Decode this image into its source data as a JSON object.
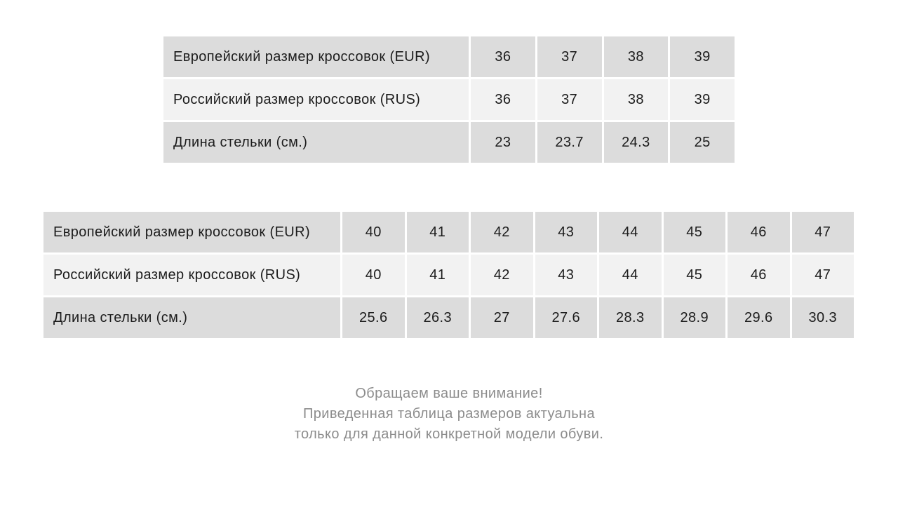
{
  "chart_data": [
    {
      "type": "table",
      "rows": [
        {
          "label": "Европейский размер кроссовок (EUR)",
          "values": [
            36,
            37,
            38,
            39
          ]
        },
        {
          "label": "Российский размер кроссовок (RUS)",
          "values": [
            36,
            37,
            38,
            39
          ]
        },
        {
          "label": "Длина стельки (см.)",
          "values": [
            23,
            23.7,
            24.3,
            25
          ]
        }
      ]
    },
    {
      "type": "table",
      "rows": [
        {
          "label": "Европейский размер кроссовок (EUR)",
          "values": [
            40,
            41,
            42,
            43,
            44,
            45,
            46,
            47
          ]
        },
        {
          "label": "Российский размер кроссовок (RUS)",
          "values": [
            40,
            41,
            42,
            43,
            44,
            45,
            46,
            47
          ]
        },
        {
          "label": "Длина стельки (см.)",
          "values": [
            25.6,
            26.3,
            27,
            27.6,
            28.3,
            28.9,
            29.6,
            30.3
          ]
        }
      ]
    }
  ],
  "note": {
    "lines": [
      "Обращаем ваше внимание!",
      "Приведенная таблица размеров актуальна",
      "только для данной конкретной модели обуви."
    ]
  },
  "colors": {
    "row_shaded": "#dcdcdc",
    "row_light": "#f2f2f2",
    "cell_gap": "#ffffff",
    "text": "#1c1c1c",
    "note_text": "#8c8c8c"
  }
}
